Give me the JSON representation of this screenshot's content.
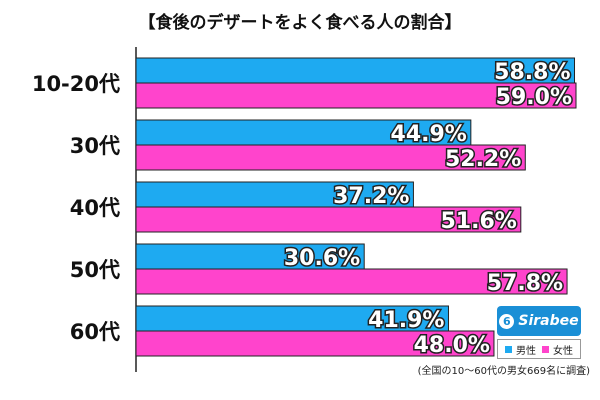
{
  "colors": {
    "male": "#1eaaf1",
    "female": "#ff44cc",
    "bar_outline": "#222222"
  },
  "logo_text": "Sirabee",
  "logo_icon": "sirabee-6-icon",
  "legend": {
    "male": "男性",
    "female": "女性"
  },
  "footnote": "(全国の10～60代の男女669名に調査)",
  "chart_data": {
    "type": "bar",
    "orientation": "horizontal",
    "title": "【食後のデザートをよく食べる人の割合】",
    "categories": [
      "10-20代",
      "30代",
      "40代",
      "50代",
      "60代"
    ],
    "series": [
      {
        "name": "男性",
        "values": [
          58.8,
          44.9,
          37.2,
          30.6,
          41.9
        ],
        "labels": [
          "58.8%",
          "44.9%",
          "37.2%",
          "30.6%",
          "41.9%"
        ]
      },
      {
        "name": "女性",
        "values": [
          59.0,
          52.2,
          51.6,
          57.8,
          48.0
        ],
        "labels": [
          "59.0%",
          "52.2%",
          "51.6%",
          "57.8%",
          "48.0%"
        ]
      }
    ],
    "xlim": [
      0,
      59
    ],
    "grid": false,
    "legend_position": "bottom-right"
  }
}
